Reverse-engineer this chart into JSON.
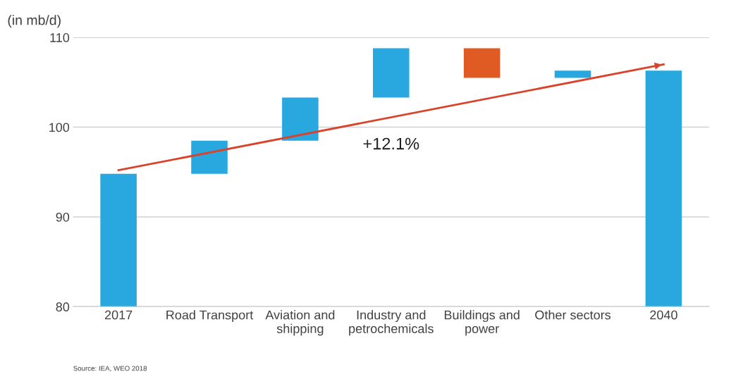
{
  "chart_data": {
    "type": "bar",
    "ylabel": "(in mb/d)",
    "categories": [
      "2017",
      "Road Transport",
      "Aviation and\nshipping",
      "Industry and\npetrochemicals",
      "Buildings and\npower",
      "Other sectors",
      "2040"
    ],
    "base": [
      0,
      94.8,
      98.5,
      103.3,
      108.8,
      105.5,
      0
    ],
    "values": [
      94.8,
      3.7,
      4.8,
      5.5,
      -3.3,
      0.8,
      106.3
    ],
    "colors": [
      "#29a8e0",
      "#29a8e0",
      "#29a8e0",
      "#29a8e0",
      "#e05a24",
      "#29a8e0",
      "#29a8e0"
    ],
    "series": [
      {
        "type": "line",
        "values": [
          95.2,
          null,
          null,
          null,
          null,
          null,
          107.0
        ],
        "color": "#d9432b"
      }
    ],
    "ylim": [
      80,
      110
    ],
    "yticks": [
      80,
      90,
      100,
      110
    ],
    "grid": "y",
    "annotations": [
      "+12.1%",
      "Source: IEA, WEO 2018"
    ]
  }
}
